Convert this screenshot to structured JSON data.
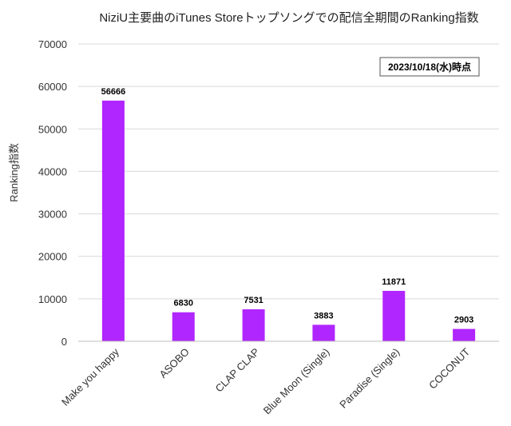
{
  "chart_data": {
    "type": "bar",
    "title": "NiziU主要曲のiTunes Storeトップソングでの配信全期間のRanking指数",
    "annotation": "2023/10/18(水)時点",
    "xlabel": "",
    "ylabel": "Ranking指数",
    "ylim": [
      0,
      70000
    ],
    "yticks": [
      0,
      10000,
      20000,
      30000,
      40000,
      50000,
      60000,
      70000
    ],
    "grid": true,
    "categories": [
      "Make you happy",
      "ASOBO",
      "CLAP CLAP",
      "Blue Moon (Single)",
      "Paradise (Single)",
      "COCONUT"
    ],
    "values": [
      56666,
      6830,
      7531,
      3883,
      11871,
      2903
    ],
    "bar_color": "#b026ff"
  }
}
